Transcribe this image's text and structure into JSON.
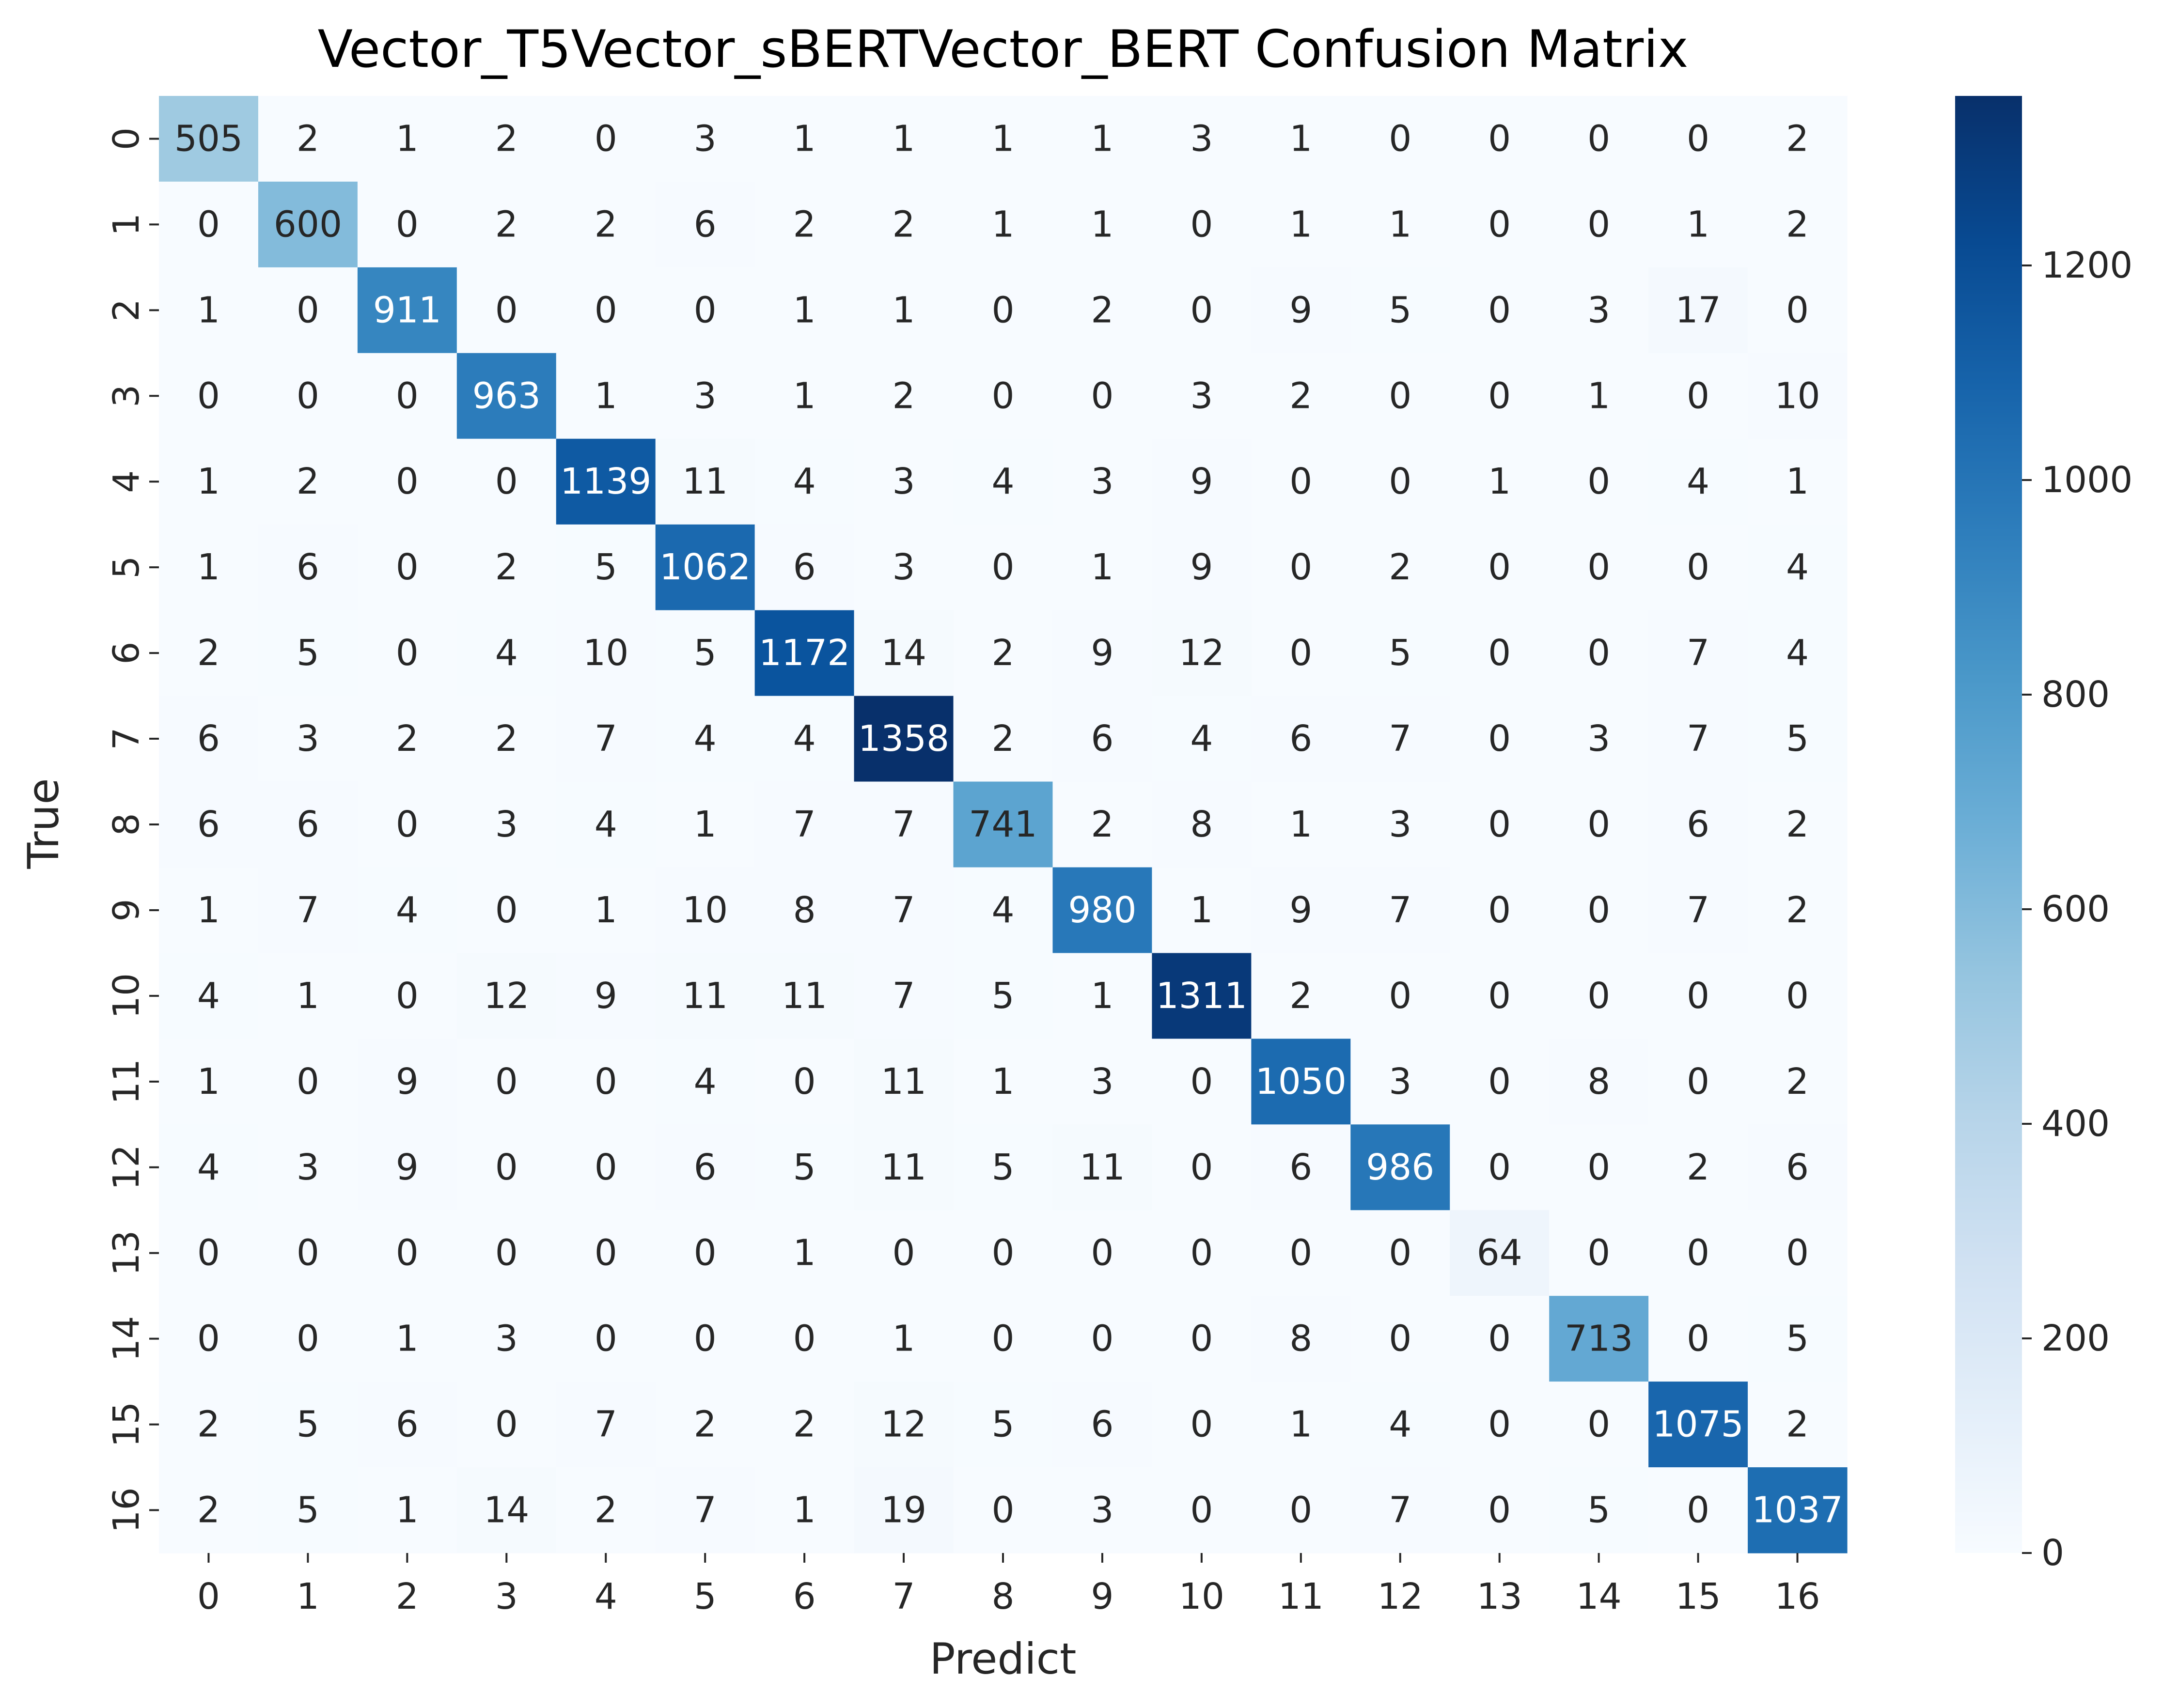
{
  "chart_data": {
    "type": "heatmap",
    "title": "Vector_T5Vector_sBERTVector_BERT Confusion Matrix",
    "xlabel": "Predict",
    "ylabel": "True",
    "x_categories": [
      "0",
      "1",
      "2",
      "3",
      "4",
      "5",
      "6",
      "7",
      "8",
      "9",
      "10",
      "11",
      "12",
      "13",
      "14",
      "15",
      "16"
    ],
    "y_categories": [
      "0",
      "1",
      "2",
      "3",
      "4",
      "5",
      "6",
      "7",
      "8",
      "9",
      "10",
      "11",
      "12",
      "13",
      "14",
      "15",
      "16"
    ],
    "matrix": [
      [
        505,
        2,
        1,
        2,
        0,
        3,
        1,
        1,
        1,
        1,
        3,
        1,
        0,
        0,
        0,
        0,
        2
      ],
      [
        0,
        600,
        0,
        2,
        2,
        6,
        2,
        2,
        1,
        1,
        0,
        1,
        1,
        0,
        0,
        1,
        2
      ],
      [
        1,
        0,
        911,
        0,
        0,
        0,
        1,
        1,
        0,
        2,
        0,
        9,
        5,
        0,
        3,
        17,
        0
      ],
      [
        0,
        0,
        0,
        963,
        1,
        3,
        1,
        2,
        0,
        0,
        3,
        2,
        0,
        0,
        1,
        0,
        10
      ],
      [
        1,
        2,
        0,
        0,
        1139,
        11,
        4,
        3,
        4,
        3,
        9,
        0,
        0,
        1,
        0,
        4,
        1
      ],
      [
        1,
        6,
        0,
        2,
        5,
        1062,
        6,
        3,
        0,
        1,
        9,
        0,
        2,
        0,
        0,
        0,
        4
      ],
      [
        2,
        5,
        0,
        4,
        10,
        5,
        1172,
        14,
        2,
        9,
        12,
        0,
        5,
        0,
        0,
        7,
        4
      ],
      [
        6,
        3,
        2,
        2,
        7,
        4,
        4,
        1358,
        2,
        6,
        4,
        6,
        7,
        0,
        3,
        7,
        5
      ],
      [
        6,
        6,
        0,
        3,
        4,
        1,
        7,
        7,
        741,
        2,
        8,
        1,
        3,
        0,
        0,
        6,
        2
      ],
      [
        1,
        7,
        4,
        0,
        1,
        10,
        8,
        7,
        4,
        980,
        1,
        9,
        7,
        0,
        0,
        7,
        2
      ],
      [
        4,
        1,
        0,
        12,
        9,
        11,
        11,
        7,
        5,
        1,
        1311,
        2,
        0,
        0,
        0,
        0,
        0
      ],
      [
        1,
        0,
        9,
        0,
        0,
        4,
        0,
        11,
        1,
        3,
        0,
        1050,
        3,
        0,
        8,
        0,
        2
      ],
      [
        4,
        3,
        9,
        0,
        0,
        6,
        5,
        11,
        5,
        11,
        0,
        6,
        986,
        0,
        0,
        2,
        6
      ],
      [
        0,
        0,
        0,
        0,
        0,
        0,
        1,
        0,
        0,
        0,
        0,
        0,
        0,
        64,
        0,
        0,
        0
      ],
      [
        0,
        0,
        1,
        3,
        0,
        0,
        0,
        1,
        0,
        0,
        0,
        8,
        0,
        0,
        713,
        0,
        5
      ],
      [
        2,
        5,
        6,
        0,
        7,
        2,
        2,
        12,
        5,
        6,
        0,
        1,
        4,
        0,
        0,
        1075,
        2
      ],
      [
        2,
        5,
        1,
        14,
        2,
        7,
        1,
        19,
        0,
        3,
        0,
        0,
        7,
        0,
        5,
        0,
        1037
      ]
    ],
    "colorbar": {
      "colormap": "Blues",
      "vmin": 0,
      "vmax": 1358,
      "ticks": [
        0,
        200,
        400,
        600,
        800,
        1000,
        1200
      ]
    },
    "grid": false
  },
  "colors": {
    "text_dark": "#262626",
    "text_light": "#ffffff",
    "title": "#000000"
  }
}
